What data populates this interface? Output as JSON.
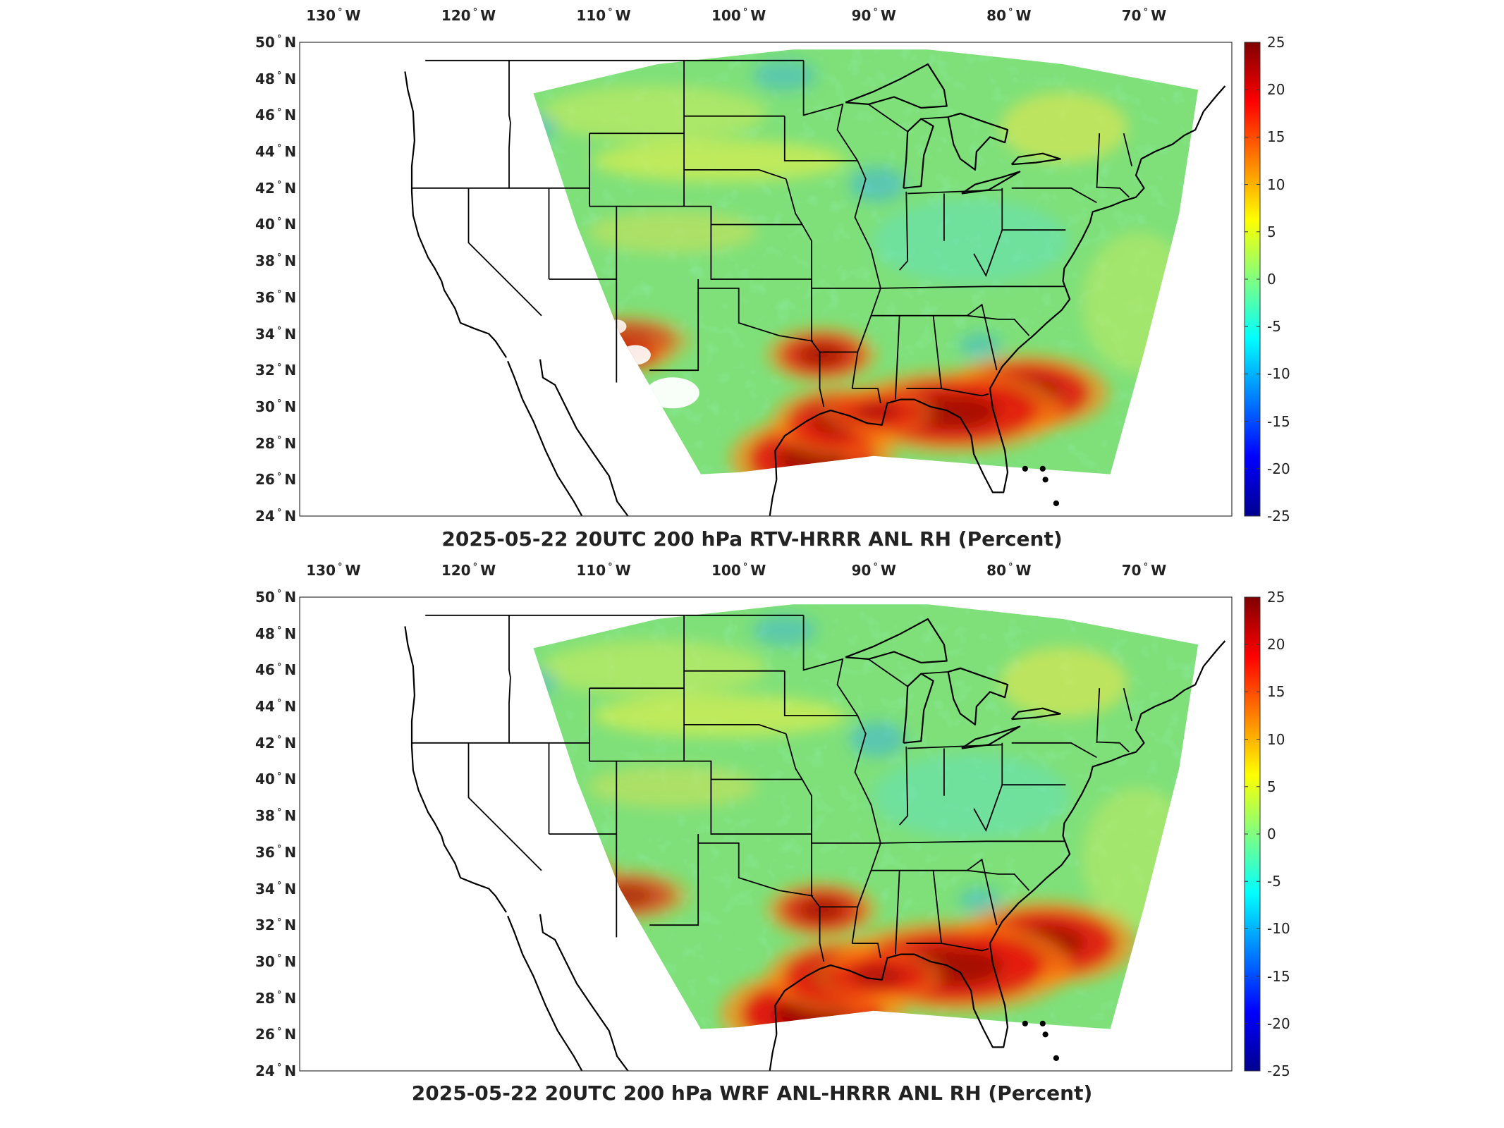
{
  "panels": [
    {
      "id": "top",
      "title": "2025-05-22 20UTC 200 hPa RTV-HRRR ANL RH (Percent)",
      "hot": [
        [
          0.55,
          0.88,
          90,
          46,
          0.85
        ],
        [
          0.58,
          0.8,
          75,
          38,
          0.75
        ],
        [
          0.78,
          0.74,
          90,
          42,
          0.8
        ],
        [
          0.7,
          0.78,
          120,
          45,
          0.8
        ],
        [
          0.56,
          0.66,
          60,
          30,
          0.7
        ],
        [
          0.62,
          0.78,
          60,
          25,
          0.6
        ],
        [
          0.35,
          0.63,
          70,
          28,
          0.55
        ],
        [
          0.34,
          0.66,
          60,
          22,
          0.5
        ]
      ],
      "cold": [
        [
          0.28,
          0.56,
          45,
          35,
          0.45
        ],
        [
          0.11,
          0.43,
          30,
          22,
          0.35
        ],
        [
          0.62,
          0.3,
          40,
          25,
          0.45
        ],
        [
          0.25,
          0.18,
          35,
          20,
          0.4
        ],
        [
          0.73,
          0.64,
          30,
          18,
          0.4
        ],
        [
          0.52,
          0.07,
          45,
          22,
          0.4
        ],
        [
          0.05,
          0.45,
          18,
          20,
          0.45
        ]
      ]
    },
    {
      "id": "bottom",
      "title": "2025-05-22 20UTC 200 hPa WRF ANL-HRRR ANL RH (Percent)",
      "hot": [
        [
          0.55,
          0.88,
          100,
          48,
          0.9
        ],
        [
          0.58,
          0.8,
          80,
          40,
          0.8
        ],
        [
          0.8,
          0.73,
          100,
          46,
          0.85
        ],
        [
          0.7,
          0.78,
          130,
          50,
          0.85
        ],
        [
          0.56,
          0.66,
          60,
          30,
          0.7
        ],
        [
          0.62,
          0.8,
          70,
          28,
          0.65
        ],
        [
          0.28,
          0.58,
          60,
          25,
          0.6
        ],
        [
          0.35,
          0.63,
          70,
          28,
          0.55
        ]
      ],
      "cold": [
        [
          0.25,
          0.62,
          45,
          30,
          0.45
        ],
        [
          0.12,
          0.45,
          30,
          22,
          0.35
        ],
        [
          0.62,
          0.3,
          40,
          25,
          0.45
        ],
        [
          0.25,
          0.18,
          35,
          20,
          0.4
        ],
        [
          0.73,
          0.64,
          30,
          18,
          0.4
        ],
        [
          0.52,
          0.07,
          45,
          22,
          0.4
        ],
        [
          0.05,
          0.45,
          18,
          20,
          0.45
        ]
      ]
    }
  ],
  "lon_labels": [
    "130° W",
    "120° W",
    "110° W",
    "100° W",
    "90° W",
    "80° W",
    "70° W"
  ],
  "lat_labels": [
    "50° N",
    "48° N",
    "46° N",
    "44° N",
    "42° N",
    "40° N",
    "38° N",
    "36° N",
    "34° N",
    "32° N",
    "30° N",
    "28° N",
    "26° N",
    "24° N"
  ],
  "colorbar_ticks": [
    "25",
    "20",
    "15",
    "10",
    "5",
    "0",
    "-5",
    "-10",
    "-15",
    "-20",
    "-25"
  ],
  "colormap": [
    "#00008f",
    "#0000ff",
    "#0080ff",
    "#00ffff",
    "#80ff80",
    "#ffff00",
    "#ff8000",
    "#ff0000",
    "#800000"
  ],
  "field_base_color": "#7fe07a"
}
